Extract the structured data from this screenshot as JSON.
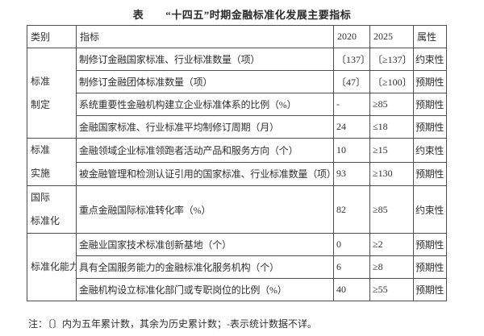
{
  "title": "表　　“十四五”时期金融标准化发展主要指标",
  "table": {
    "headers": [
      "类别",
      "指标",
      "2020",
      "2025",
      "属性"
    ],
    "groups": [
      {
        "category_lines": [
          "标准",
          "制定"
        ],
        "rows": [
          {
            "indicator": "制修订金融国家标准、行业标准数量（项）",
            "v2020": "〔137〕",
            "v2025": "〔≥137〕",
            "attr": "约束性"
          },
          {
            "indicator": "制修订金融团体标准数量（项）",
            "v2020": "〔47〕",
            "v2025": "〔≥100〕",
            "attr": "预期性"
          },
          {
            "indicator": "系统重要性金融机构建立企业标准体系的比例（%）",
            "v2020": "-",
            "v2025": "≥85",
            "attr": "预期性"
          },
          {
            "indicator": "金融国家标准、行业标准平均制修订周期（月）",
            "v2020": "24",
            "v2025": "≤18",
            "attr": "预期性"
          }
        ]
      },
      {
        "category_lines": [
          "标准",
          "实施"
        ],
        "rows": [
          {
            "indicator": "金融领域企业标准领跑者活动产品和服务方向（个）",
            "v2020": "10",
            "v2025": "≥15",
            "attr": "约束性"
          },
          {
            "indicator": "被金融管理和检测认证引用的国家标准、行业标准数量（项）",
            "v2020": "93",
            "v2025": "≥130",
            "attr": "预期性"
          }
        ]
      },
      {
        "category_lines": [
          "国际",
          "标准化"
        ],
        "rows": [
          {
            "indicator": "重点金融国际标准转化率（%）",
            "v2020": "82",
            "v2025": "≥85",
            "attr": "约束性"
          }
        ]
      },
      {
        "category_lines": [
          "标准化能力"
        ],
        "rows": [
          {
            "indicator": "金融业国家技术标准创新基地（个）",
            "v2020": "0",
            "v2025": "≥2",
            "attr": "预期性"
          },
          {
            "indicator": "具有全国服务能力的金融标准化服务机构（个）",
            "v2020": "6",
            "v2025": "≥8",
            "attr": "预期性"
          },
          {
            "indicator": "金融机构设立标准化部门或专职岗位的比例（%）",
            "v2020": "40",
            "v2025": "≥55",
            "attr": "预期性"
          }
        ]
      }
    ]
  },
  "footnote": "注：〔〕内为五年累计数，其余为历史累计数；-表示统计数据不详。",
  "colors": {
    "border": "#4f4f4f",
    "text": "#2f2f2f",
    "background": "#ffffff"
  }
}
